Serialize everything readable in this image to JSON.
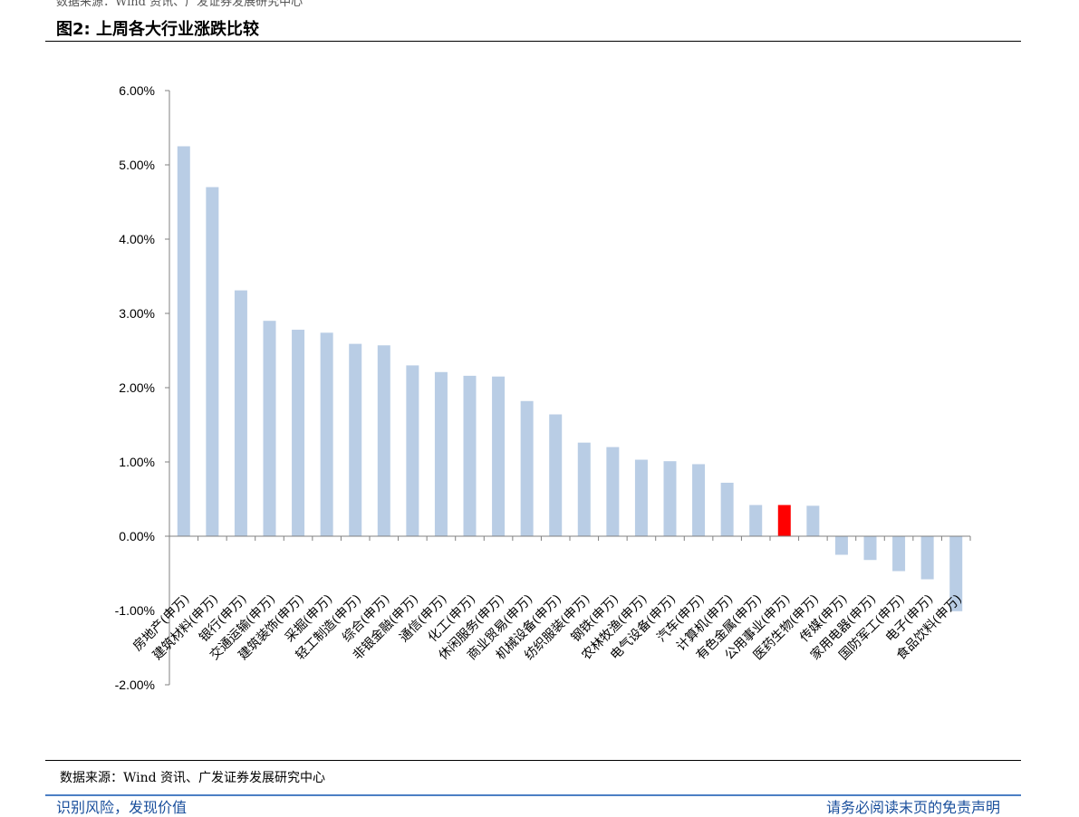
{
  "header": {
    "top_cut_text": "数据来源：Wind 资讯、广发证券发展研究中心",
    "figure_title": "图2:  上周各大行业涨跌比较"
  },
  "footer": {
    "source": "数据来源：Wind 资讯、广发证券发展研究中心",
    "cut_left": "识别风险，发现价值",
    "cut_right": "请务必阅读末页的免责声明"
  },
  "colors": {
    "bar": "#b9cde5",
    "highlight": "#ff0000",
    "axis": "#808080"
  },
  "chart_data": {
    "type": "bar",
    "title": "",
    "xlabel": "",
    "ylabel": "",
    "ylim": [
      -0.02,
      0.06
    ],
    "y_tick_step": 0.01,
    "y_tick_format": "percent_2dp",
    "grid": false,
    "highlight_category": "公用事业(申万)",
    "categories": [
      "房地产(申万)",
      "建筑材料(申万)",
      "银行(申万)",
      "交通运输(申万)",
      "建筑装饰(申万)",
      "采掘(申万)",
      "轻工制造(申万)",
      "综合(申万)",
      "非银金融(申万)",
      "通信(申万)",
      "化工(申万)",
      "休闲服务(申万)",
      "商业贸易(申万)",
      "机械设备(申万)",
      "纺织服装(申万)",
      "钢铁(申万)",
      "农林牧渔(申万)",
      "电气设备(申万)",
      "汽车(申万)",
      "计算机(申万)",
      "有色金属(申万)",
      "公用事业(申万)",
      "医药生物(申万)",
      "传媒(申万)",
      "家用电器(申万)",
      "国防军工(申万)",
      "电子(申万)",
      "食品饮料(申万)"
    ],
    "values": [
      0.0525,
      0.047,
      0.0331,
      0.029,
      0.0278,
      0.0274,
      0.0259,
      0.0257,
      0.023,
      0.0221,
      0.0216,
      0.0215,
      0.0182,
      0.0164,
      0.0126,
      0.012,
      0.0103,
      0.0101,
      0.0097,
      0.0072,
      0.0042,
      0.0042,
      0.0041,
      -0.0025,
      -0.0032,
      -0.0047,
      -0.0058,
      -0.0101
    ]
  }
}
